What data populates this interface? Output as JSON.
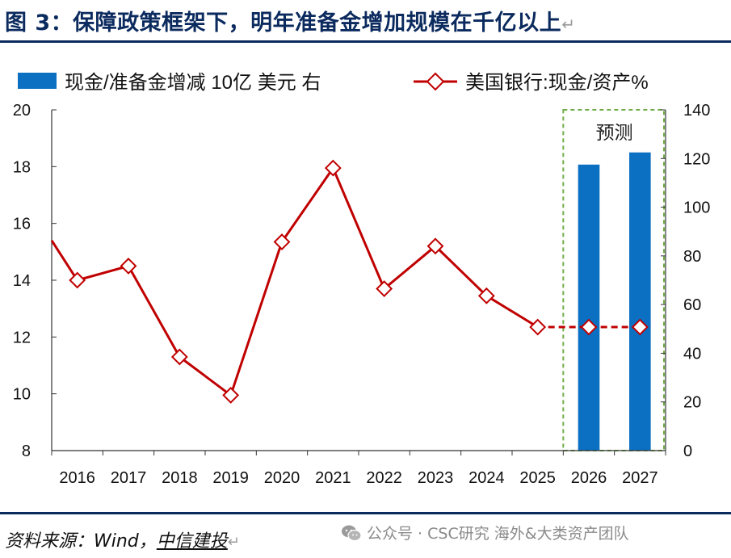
{
  "title": {
    "text": "图 3：保障政策框架下，明年准备金增加规模在千亿以上",
    "mark": "↵"
  },
  "chart_data": {
    "type": "bar+line",
    "title": "图 3：保障政策框架下，明年准备金增加规模在千亿以上",
    "categories": [
      "2016",
      "2017",
      "2018",
      "2019",
      "2020",
      "2021",
      "2022",
      "2023",
      "2024",
      "2025",
      "2026",
      "2027"
    ],
    "series": [
      {
        "name": "现金/准备金增减 10亿 美元 右",
        "type": "bar",
        "axis": "right",
        "color": "#0b6fc2",
        "values": [
          null,
          null,
          null,
          null,
          null,
          null,
          null,
          null,
          null,
          null,
          117.5,
          122.5
        ]
      },
      {
        "name": "美国银行:现金/资产%",
        "type": "line",
        "axis": "left",
        "color": "#c00000",
        "x_start_value": 15.4,
        "values": [
          14.0,
          14.5,
          11.3,
          9.95,
          15.35,
          17.95,
          13.7,
          15.2,
          13.45,
          12.35,
          12.35,
          12.35
        ],
        "forecast_from_index": 9
      }
    ],
    "y_left": {
      "min": 8,
      "max": 20,
      "ticks": [
        8,
        10,
        12,
        14,
        16,
        18,
        20
      ]
    },
    "y_right": {
      "min": 0,
      "max": 140,
      "ticks": [
        0,
        20,
        40,
        60,
        80,
        100,
        120,
        140
      ]
    },
    "forecast_region": {
      "label": "预测",
      "categories": [
        "2026",
        "2027"
      ]
    },
    "legend_position": "top"
  },
  "source": {
    "label": "资料来源：Wind，",
    "brand": "中信建投",
    "mark": "↵"
  },
  "watermark": {
    "text": "公众号 · CSC研究 海外&大类资产团队"
  }
}
